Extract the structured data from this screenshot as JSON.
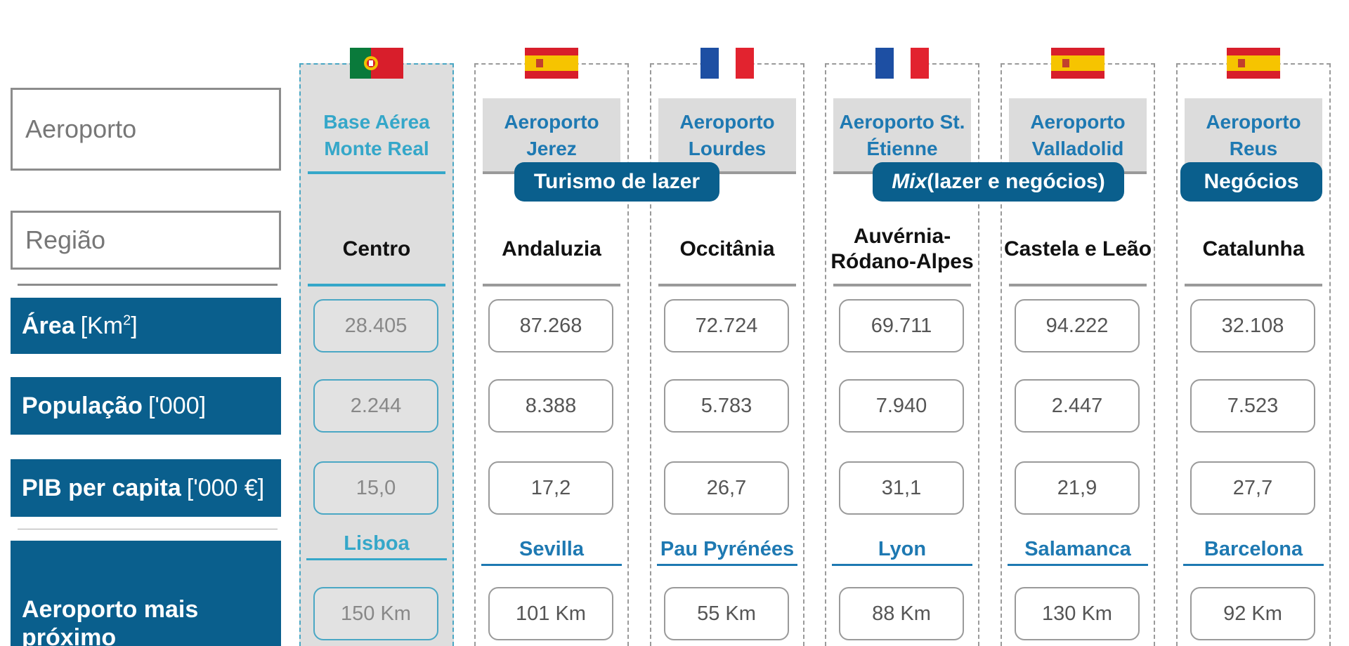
{
  "labels": {
    "aeroporto": "Aeroporto",
    "regiao": "Região",
    "area": {
      "name": "Área",
      "unit": "[Km",
      "sup": "2",
      "close": "]"
    },
    "populacao": {
      "name": "População",
      "unit": "['000]"
    },
    "pib": {
      "name": "PIB per capita",
      "unit": "['000 €]"
    },
    "nearest": "Aeroporto mais próximo"
  },
  "categories": {
    "leisure": "Turismo de lazer",
    "mix_italic": "Mix",
    "mix_rest": " (lazer e negócios)",
    "business": "Negócios"
  },
  "airports": [
    {
      "flag": "portugal-flag-icon",
      "name": "Base Aérea Monte Real",
      "region": "Centro",
      "area": "28.405",
      "population": "2.244",
      "gdp": "15,0",
      "nearest": "Lisboa",
      "distance": "150 Km"
    },
    {
      "flag": "spain-flag-icon",
      "name": "Aeroporto Jerez",
      "region": "Andaluzia",
      "area": "87.268",
      "population": "8.388",
      "gdp": "17,2",
      "nearest": "Sevilla",
      "distance": "101 Km"
    },
    {
      "flag": "france-flag-icon",
      "name": "Aeroporto Lourdes",
      "region": "Occitânia",
      "area": "72.724",
      "population": "5.783",
      "gdp": "26,7",
      "nearest": "Pau Pyrénées",
      "distance": "55 Km"
    },
    {
      "flag": "france-flag-icon",
      "name": "Aeroporto St. Étienne",
      "region": "Auvérnia-Ródano-Alpes",
      "area": "69.711",
      "population": "7.940",
      "gdp": "31,1",
      "nearest": "Lyon",
      "distance": "88 Km"
    },
    {
      "flag": "spain-flag-icon",
      "name": "Aeroporto Valladolid",
      "region": "Castela e Leão",
      "area": "94.222",
      "population": "2.447",
      "gdp": "21,9",
      "nearest": "Salamanca",
      "distance": "130 Km"
    },
    {
      "flag": "spain-flag-icon",
      "name": "Aeroporto Reus",
      "region": "Catalunha",
      "area": "32.108",
      "population": "7.523",
      "gdp": "27,7",
      "nearest": "Barcelona",
      "distance": "92 Km"
    }
  ],
  "colors": {
    "primary_blue": "#0a5f8d",
    "accent_cyan": "#35a7c9",
    "text_blue": "#1e79b2",
    "gray_border": "#9a9a9a"
  }
}
